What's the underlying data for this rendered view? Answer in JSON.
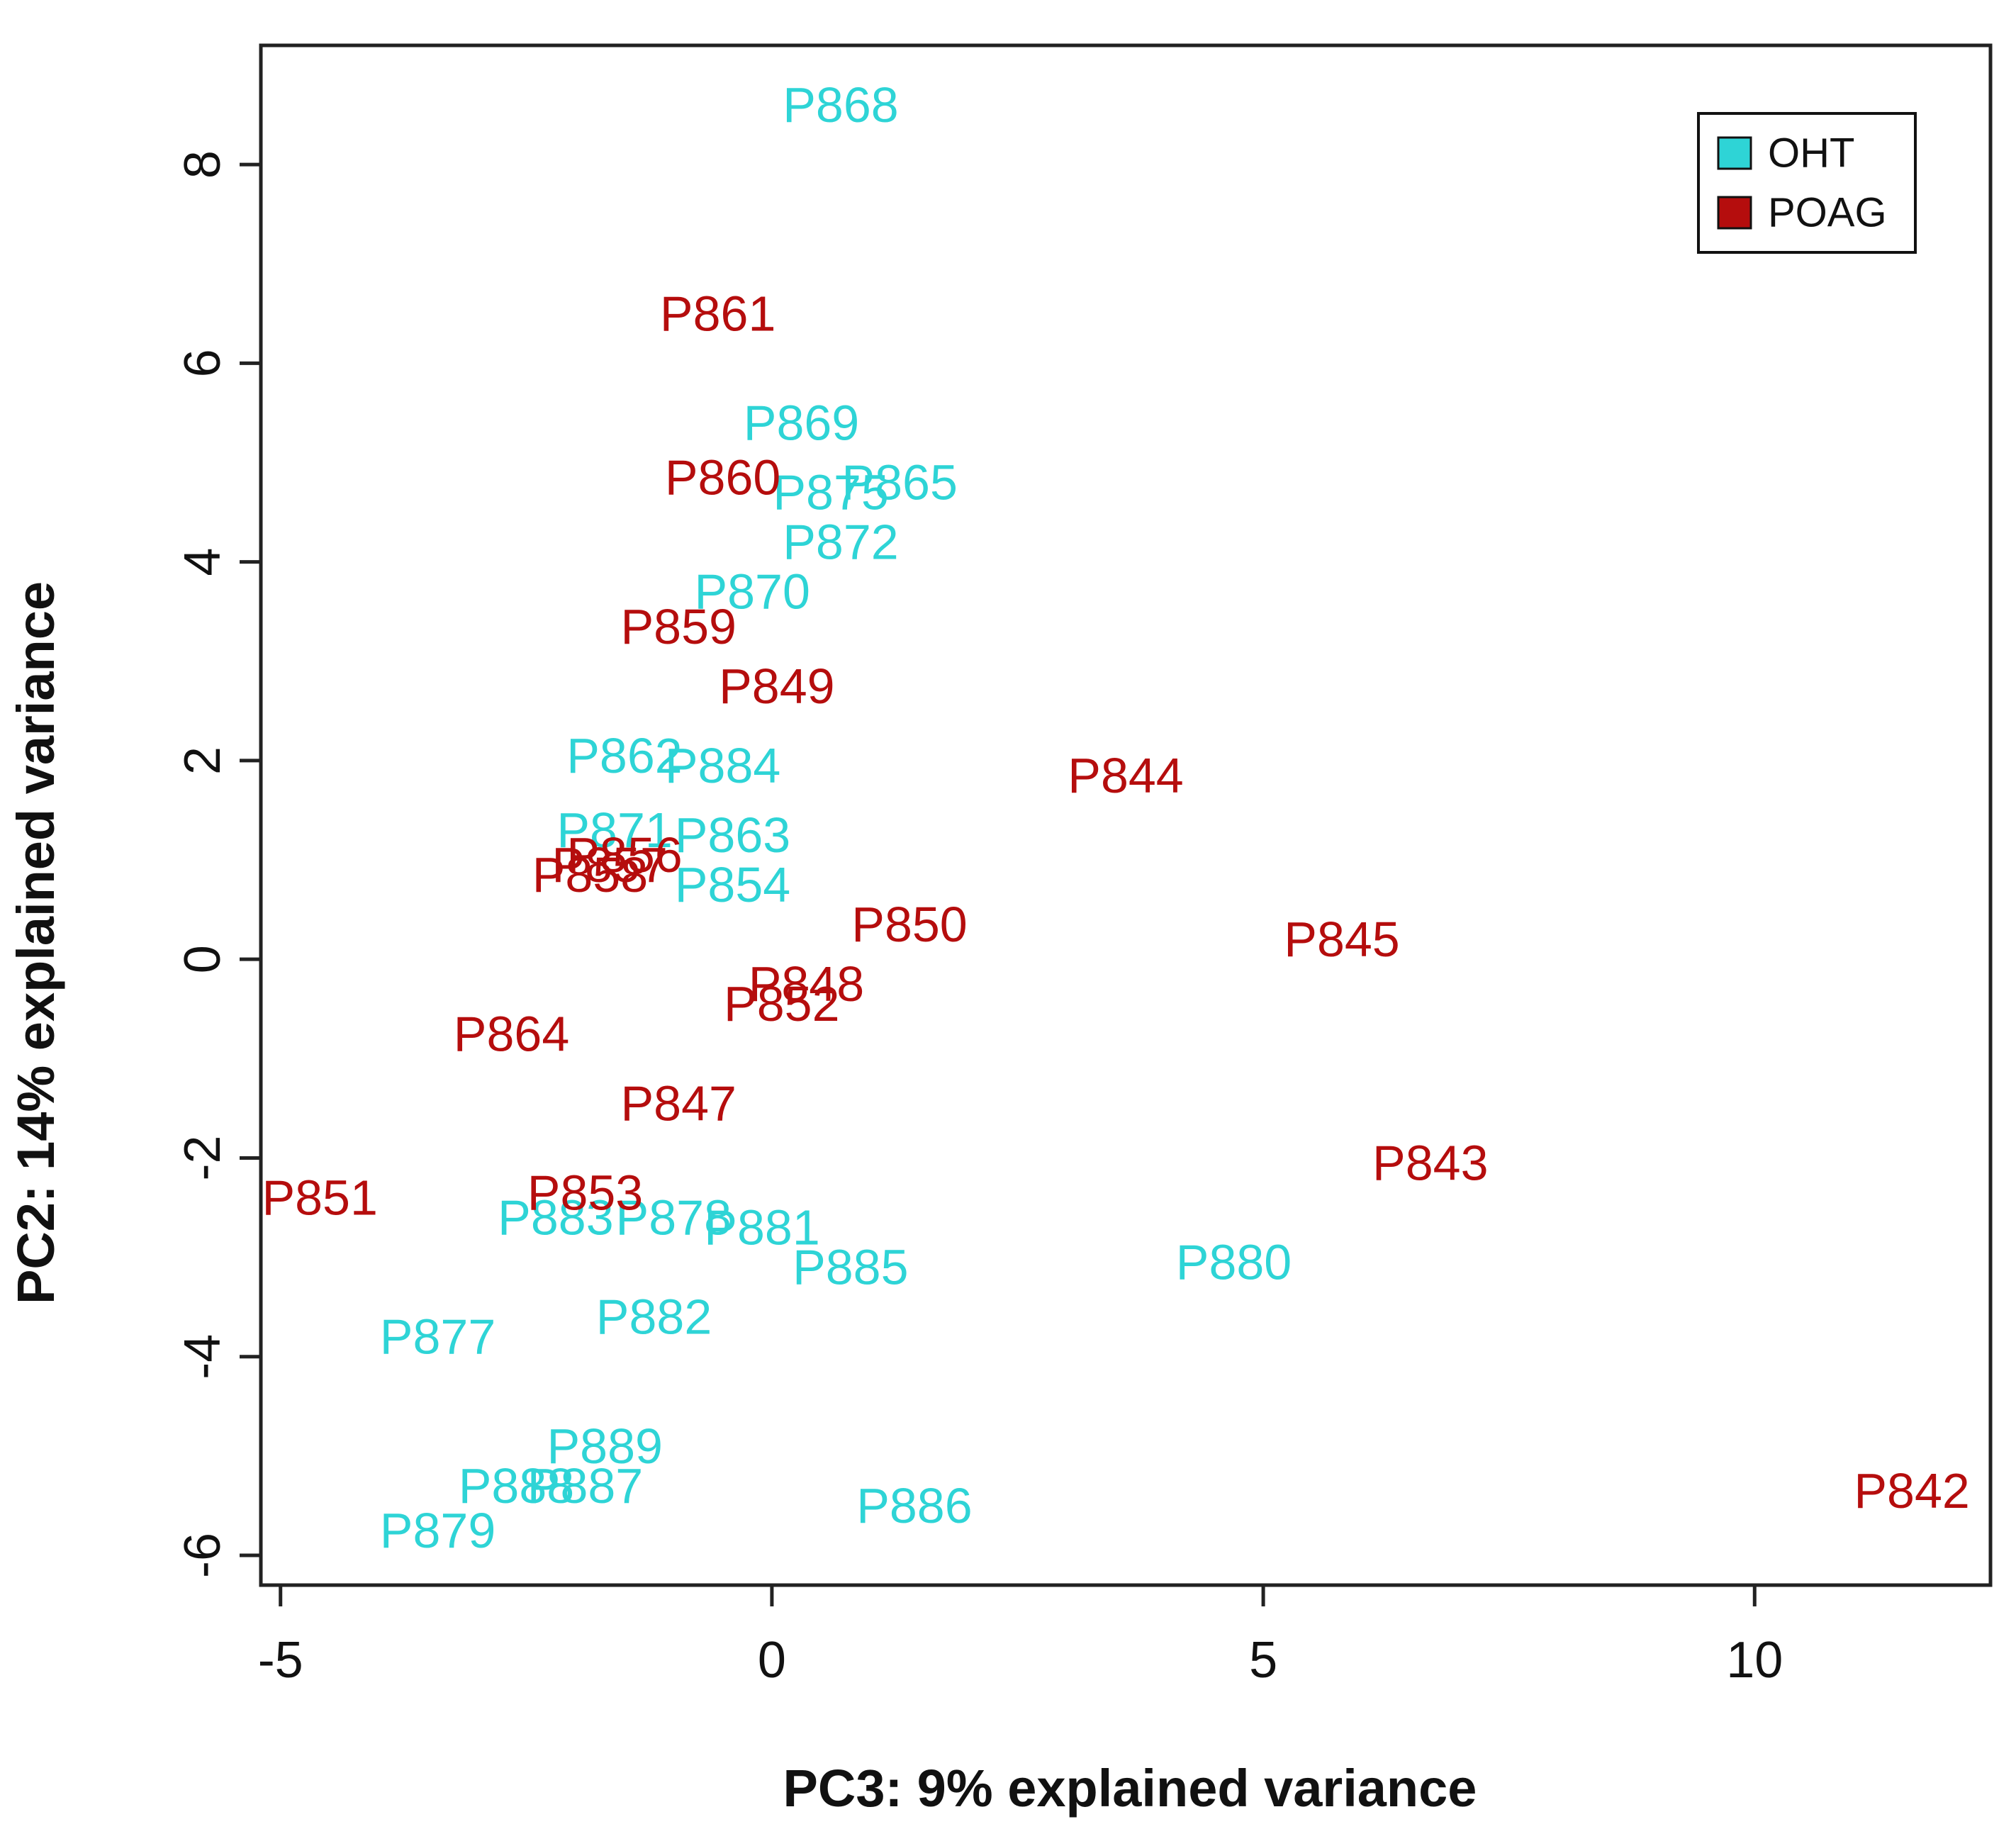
{
  "chart_data": {
    "type": "scatter",
    "title": "",
    "xlabel": "PC3: 9% explained variance",
    "ylabel": "PC2: 14% explained variance",
    "xlim": [
      -5.2,
      12.4
    ],
    "ylim": [
      -6.3,
      9.2
    ],
    "x_ticks": [
      {
        "value": -5,
        "label": "-5"
      },
      {
        "value": 0,
        "label": "0"
      },
      {
        "value": 5,
        "label": "5"
      },
      {
        "value": 10,
        "label": "10"
      }
    ],
    "y_ticks": [
      {
        "value": -6,
        "label": "-6"
      },
      {
        "value": -4,
        "label": "-4"
      },
      {
        "value": -2,
        "label": "-2"
      },
      {
        "value": 0,
        "label": "0"
      },
      {
        "value": 2,
        "label": "2"
      },
      {
        "value": 4,
        "label": "4"
      },
      {
        "value": 6,
        "label": "6"
      },
      {
        "value": 8,
        "label": "8"
      }
    ],
    "legend": {
      "position": "top-right",
      "entries": [
        {
          "name": "OHT",
          "color": "#2ed4d6"
        },
        {
          "name": "POAG",
          "color": "#b50d0d"
        }
      ]
    },
    "series": [
      {
        "name": "OHT",
        "color": "#2ed4d6",
        "points": [
          {
            "label": "P868",
            "x": 0.7,
            "y": 8.6
          },
          {
            "label": "P869",
            "x": 0.3,
            "y": 5.4
          },
          {
            "label": "P865",
            "x": 1.3,
            "y": 4.8
          },
          {
            "label": "P875",
            "x": 0.6,
            "y": 4.7
          },
          {
            "label": "P872",
            "x": 0.7,
            "y": 4.2
          },
          {
            "label": "P870",
            "x": -0.2,
            "y": 3.7
          },
          {
            "label": "P862",
            "x": -1.5,
            "y": 2.05
          },
          {
            "label": "P884",
            "x": -0.5,
            "y": 1.95
          },
          {
            "label": "P871",
            "x": -1.6,
            "y": 1.3
          },
          {
            "label": "P863",
            "x": -0.4,
            "y": 1.25
          },
          {
            "label": "P854",
            "x": -0.4,
            "y": 0.75
          },
          {
            "label": "P883",
            "x": -2.2,
            "y": -2.6
          },
          {
            "label": "P878",
            "x": -1.0,
            "y": -2.6
          },
          {
            "label": "P881",
            "x": -0.1,
            "y": -2.7
          },
          {
            "label": "P885",
            "x": 0.8,
            "y": -3.1
          },
          {
            "label": "P880",
            "x": 4.7,
            "y": -3.05
          },
          {
            "label": "P882",
            "x": -1.2,
            "y": -3.6
          },
          {
            "label": "P877",
            "x": -3.4,
            "y": -3.8
          },
          {
            "label": "P889",
            "x": -1.7,
            "y": -4.9
          },
          {
            "label": "P888",
            "x": -2.6,
            "y": -5.3
          },
          {
            "label": "P887",
            "x": -1.9,
            "y": -5.3
          },
          {
            "label": "P886",
            "x": 1.45,
            "y": -5.5
          },
          {
            "label": "P879",
            "x": -3.4,
            "y": -5.75
          }
        ]
      },
      {
        "name": "POAG",
        "color": "#b50d0d",
        "points": [
          {
            "label": "P861",
            "x": -0.55,
            "y": 6.5
          },
          {
            "label": "P860",
            "x": -0.5,
            "y": 4.85
          },
          {
            "label": "P859",
            "x": -0.95,
            "y": 3.35
          },
          {
            "label": "P849",
            "x": 0.05,
            "y": 2.75
          },
          {
            "label": "P844",
            "x": 3.6,
            "y": 1.85
          },
          {
            "label": "P856",
            "x": -1.5,
            "y": 1.05
          },
          {
            "label": "P857",
            "x": -1.65,
            "y": 0.95
          },
          {
            "label": "P858",
            "x": -1.85,
            "y": 0.85
          },
          {
            "label": "P850",
            "x": 1.4,
            "y": 0.35
          },
          {
            "label": "P845",
            "x": 5.8,
            "y": 0.2
          },
          {
            "label": "P848",
            "x": 0.35,
            "y": -0.25
          },
          {
            "label": "P852",
            "x": 0.1,
            "y": -0.45
          },
          {
            "label": "P864",
            "x": -2.65,
            "y": -0.75
          },
          {
            "label": "P847",
            "x": -0.95,
            "y": -1.45
          },
          {
            "label": "P843",
            "x": 6.7,
            "y": -2.05
          },
          {
            "label": "P853",
            "x": -1.9,
            "y": -2.35
          },
          {
            "label": "P851",
            "x": -4.6,
            "y": -2.4
          },
          {
            "label": "P842",
            "x": 11.6,
            "y": -5.35
          }
        ]
      }
    ]
  }
}
